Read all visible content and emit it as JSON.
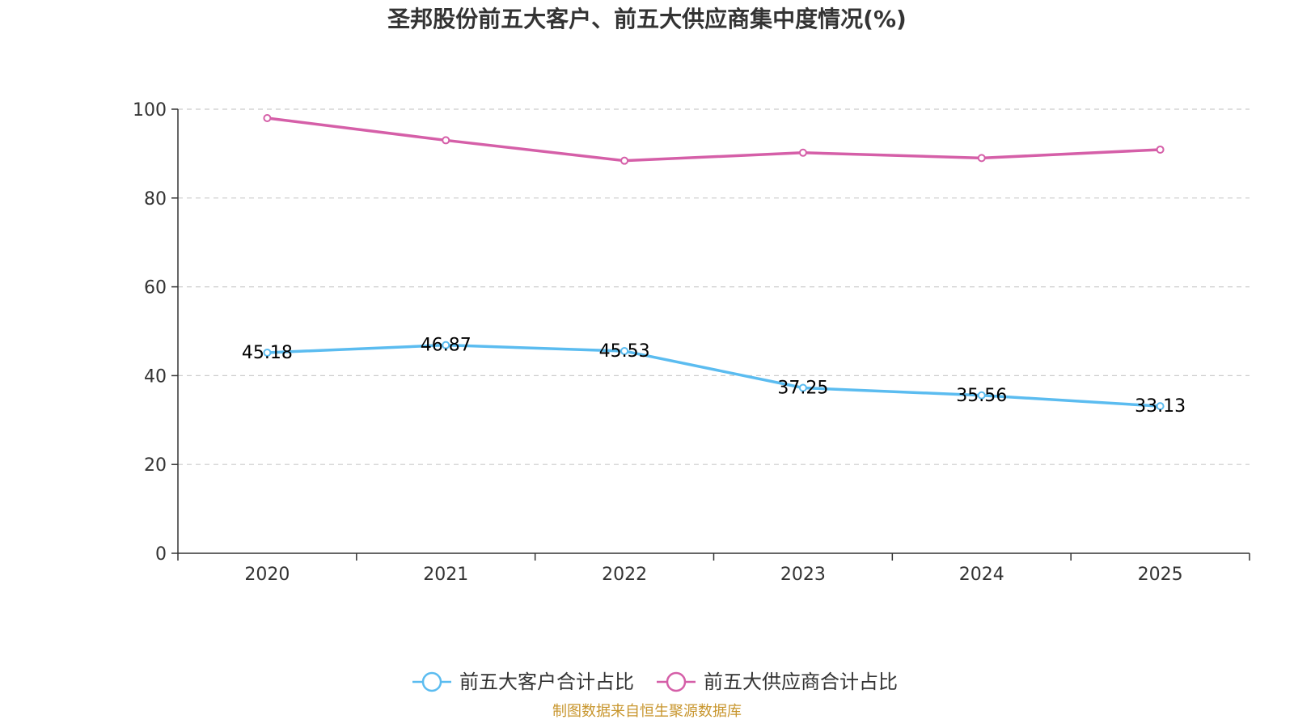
{
  "chart_data": {
    "type": "line",
    "title": "圣邦股份前五大客户、前五大供应商集中度情况(%)",
    "categories": [
      "2020",
      "2021",
      "2022",
      "2023",
      "2024",
      "2025"
    ],
    "ylim": [
      0,
      100
    ],
    "yticks": [
      0,
      20,
      40,
      60,
      80,
      100
    ],
    "grid": true,
    "legend_position": "bottom-center",
    "series": [
      {
        "name": "前五大客户合计占比",
        "color": "#5bbcf0",
        "values": [
          45.18,
          46.87,
          45.53,
          37.25,
          35.56,
          33.13
        ],
        "labels": [
          "45.18",
          "46.87",
          "45.53",
          "37.25",
          "35.56",
          "33.13"
        ],
        "show_labels": true
      },
      {
        "name": "前五大供应商合计占比",
        "color": "#d55fa8",
        "values": [
          98.0,
          93.0,
          88.4,
          90.2,
          89.0,
          90.9
        ],
        "show_labels": false
      }
    ],
    "source": "制图数据来自恒生聚源数据库"
  }
}
